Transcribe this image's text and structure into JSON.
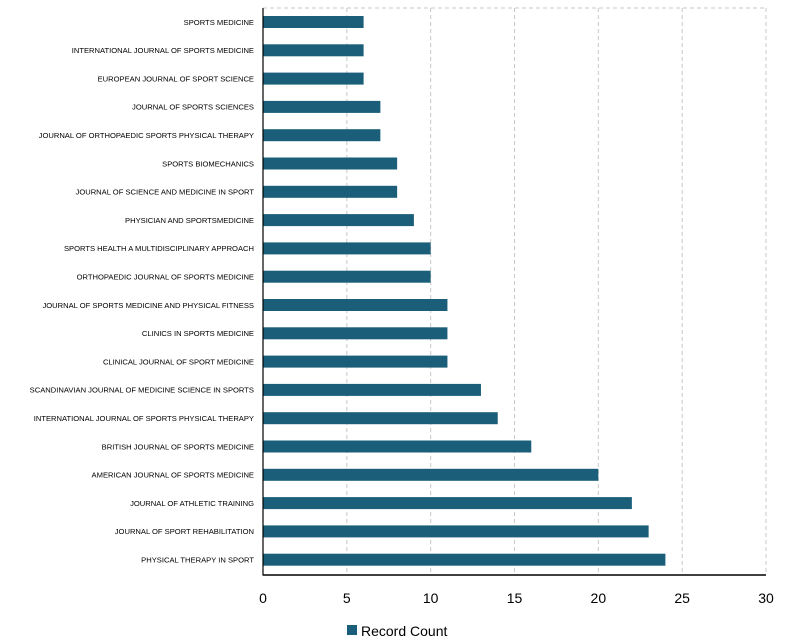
{
  "chart_data": {
    "type": "bar",
    "orientation": "horizontal",
    "title": "",
    "xlabel": "",
    "ylabel": "",
    "xlim": [
      0,
      30
    ],
    "xticks": [
      0,
      5,
      10,
      15,
      20,
      25,
      30
    ],
    "grid": true,
    "legend_position": "bottom",
    "bar_color": "#1b5e7a",
    "categories": [
      "SPORTS MEDICINE",
      "INTERNATIONAL JOURNAL OF SPORTS MEDICINE",
      "EUROPEAN JOURNAL OF SPORT SCIENCE",
      "JOURNAL OF SPORTS SCIENCES",
      "JOURNAL OF ORTHOPAEDIC SPORTS PHYSICAL THERAPY",
      "SPORTS BIOMECHANICS",
      "JOURNAL OF SCIENCE AND MEDICINE IN SPORT",
      "PHYSICIAN AND SPORTSMEDICINE",
      "SPORTS HEALTH A MULTIDISCIPLINARY APPROACH",
      "ORTHOPAEDIC JOURNAL OF SPORTS MEDICINE",
      "JOURNAL OF SPORTS MEDICINE AND PHYSICAL FITNESS",
      "CLINICS IN SPORTS MEDICINE",
      "CLINICAL JOURNAL OF SPORT MEDICINE",
      "SCANDINAVIAN JOURNAL OF MEDICINE SCIENCE IN SPORTS",
      "INTERNATIONAL JOURNAL OF SPORTS PHYSICAL THERAPY",
      "BRITISH JOURNAL OF SPORTS MEDICINE",
      "AMERICAN JOURNAL OF SPORTS MEDICINE",
      "JOURNAL OF ATHLETIC TRAINING",
      "JOURNAL OF SPORT REHABILITATION",
      "PHYSICAL THERAPY IN SPORT"
    ],
    "series": [
      {
        "name": "Record Count",
        "values": [
          6,
          6,
          6,
          7,
          7,
          8,
          8,
          9,
          10,
          10,
          11,
          11,
          11,
          13,
          14,
          16,
          20,
          22,
          23,
          24
        ]
      }
    ]
  }
}
